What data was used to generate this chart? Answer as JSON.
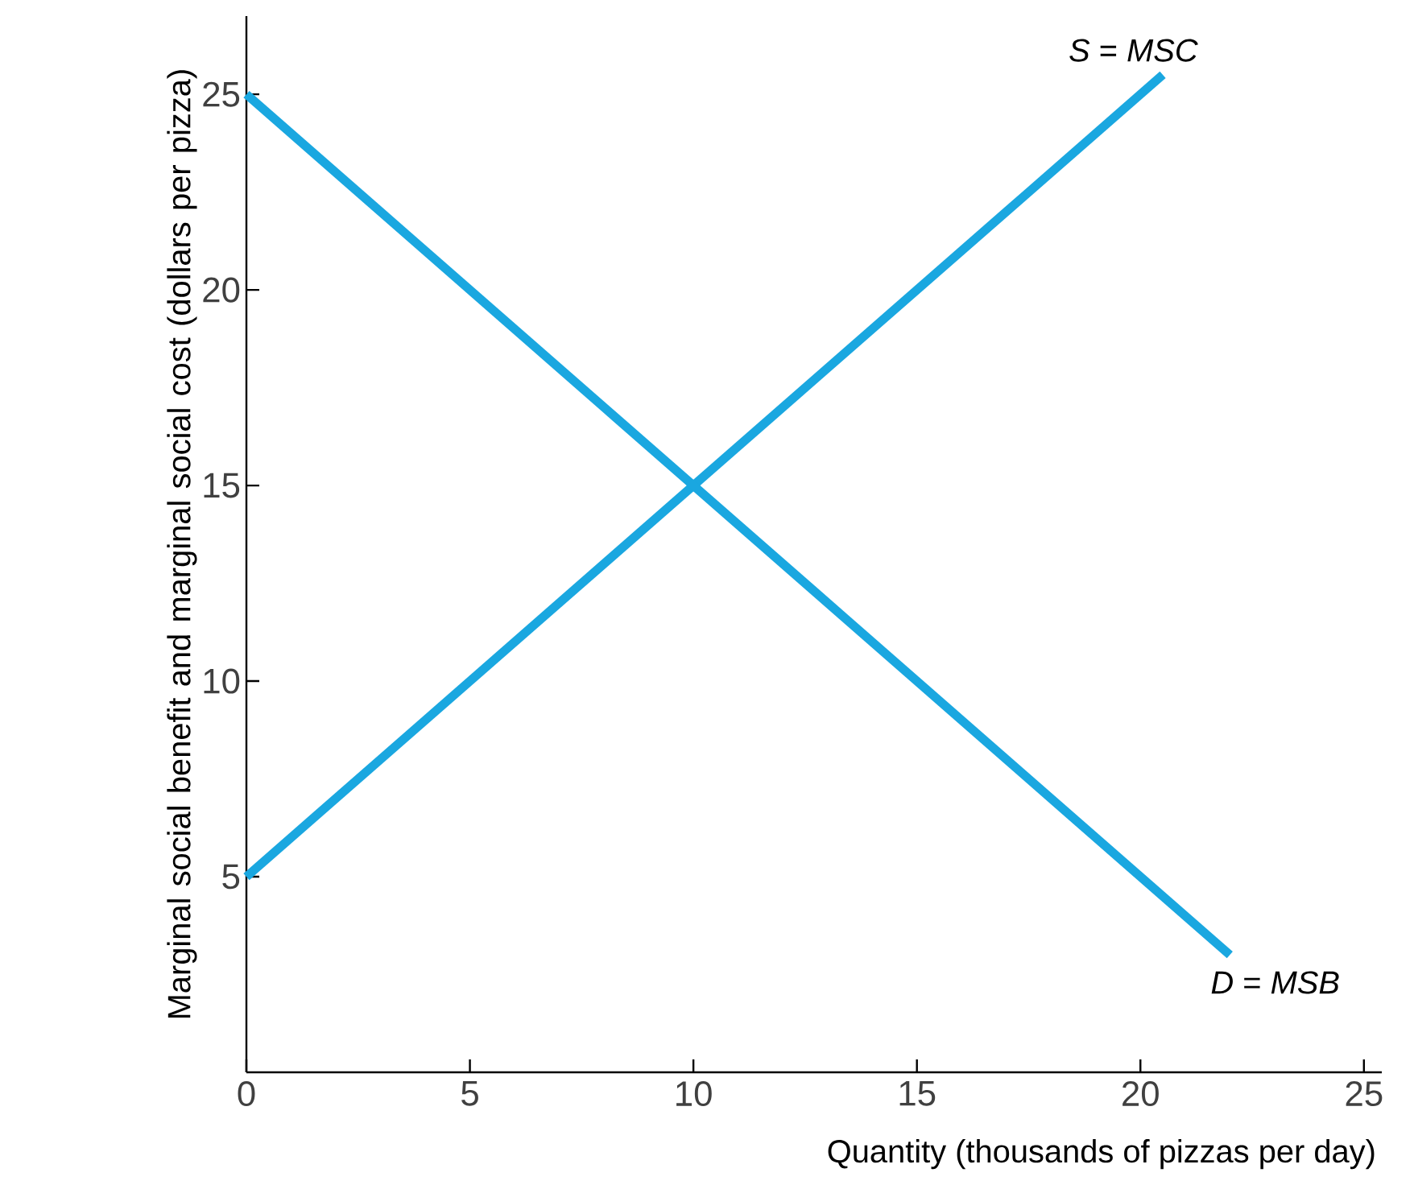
{
  "chart_data": {
    "type": "line",
    "xlabel": "Quantity (thousands of pizzas per day)",
    "ylabel": "Marginal social benefit and marginal social cost (dollars per pizza)",
    "xlim": [
      0,
      25.4
    ],
    "ylim": [
      0,
      27
    ],
    "xticks": [
      0,
      5,
      10,
      15,
      20,
      25
    ],
    "yticks": [
      5,
      10,
      15,
      20,
      25
    ],
    "grid": false,
    "legend": false,
    "marker": "none",
    "line_style": "solid",
    "series": [
      {
        "name": "*S* = *MSC*",
        "color": "#1aa7e0",
        "x": [
          0,
          20.5
        ],
        "values": [
          5,
          25.5
        ]
      },
      {
        "name": "*D* = *MSB*",
        "color": "#1aa7e0",
        "x": [
          0,
          22
        ],
        "values": [
          25,
          3
        ]
      }
    ]
  }
}
